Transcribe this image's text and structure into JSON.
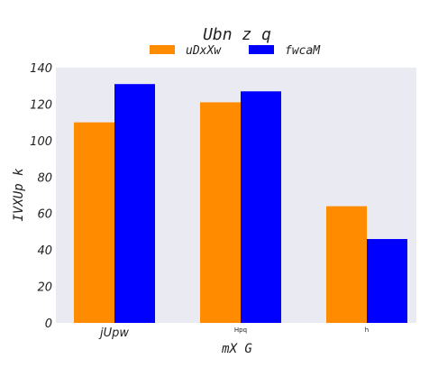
{
  "chart_data": {
    "type": "bar",
    "title": "Ubn  z  q",
    "xlabel": "mX G",
    "ylabel": "IVXUp k",
    "categories": [
      "jUpw",
      "Hpq",
      "h"
    ],
    "series": [
      {
        "name": "uDxXw",
        "color": "#ff8c00",
        "values": [
          110,
          121,
          64
        ]
      },
      {
        "name": "fwcaM",
        "color": "#0000ff",
        "values": [
          131,
          127,
          46
        ]
      }
    ],
    "ylim": [
      0,
      140
    ],
    "yticks": [
      0,
      20,
      40,
      60,
      80,
      100,
      120,
      140
    ],
    "grid": false,
    "legend_position": "top-center",
    "plot_background": "#eaeaf2"
  }
}
